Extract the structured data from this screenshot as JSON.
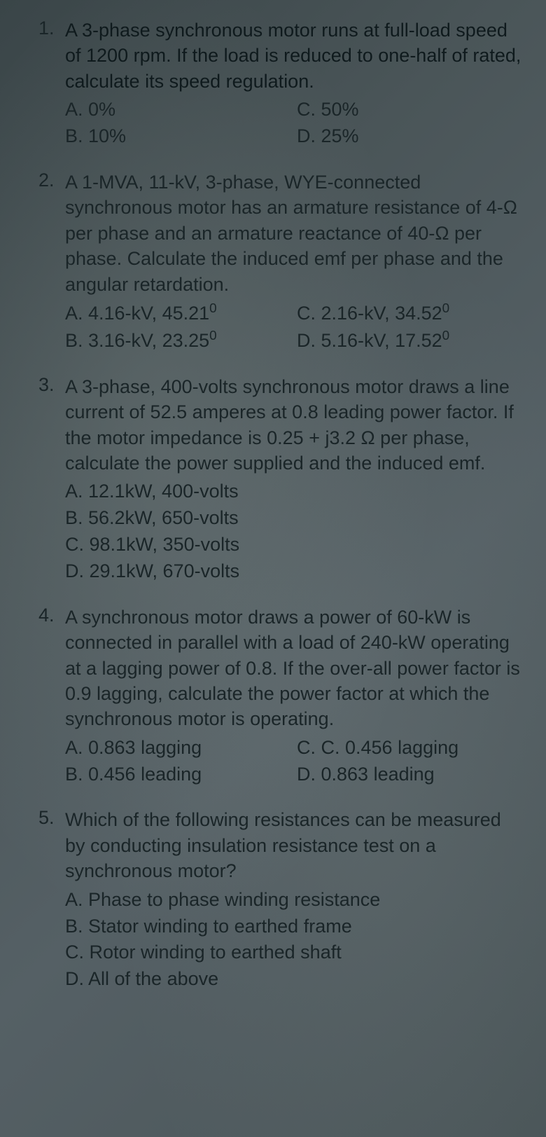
{
  "questions": [
    {
      "number": "1.",
      "text": "A 3-phase synchronous motor runs at full-load speed of 1200 rpm. If the load is reduced to one-half of rated, calculate its speed regulation.",
      "options_layout": "grid",
      "options": [
        {
          "label": "A. 0%"
        },
        {
          "label": "C. 50%"
        },
        {
          "label": "B. 10%"
        },
        {
          "label": "D. 25%"
        }
      ]
    },
    {
      "number": "2.",
      "text": "A 1-MVA, 11-kV, 3-phase, WYE-connected synchronous motor has an armature resistance of 4-Ω per phase and an armature reactance of   40-Ω per phase. Calculate the induced emf per phase and the angular retardation.",
      "options_layout": "grid",
      "options": [
        {
          "label": "A. 4.16-kV, 45.21",
          "sup": "0"
        },
        {
          "label": "C. 2.16-kV, 34.52",
          "sup": "0"
        },
        {
          "label": "B. 3.16-kV, 23.25",
          "sup": "0"
        },
        {
          "label": "D. 5.16-kV, 17.52",
          "sup": "0"
        }
      ]
    },
    {
      "number": "3.",
      "text": "A 3-phase, 400-volts synchronous motor draws a line current of 52.5 amperes at 0.8 leading power factor. If the motor impedance is 0.25 + j3.2 Ω per phase, calculate the power supplied and the induced emf.",
      "options_layout": "stack",
      "options": [
        {
          "label": "A. 12.1kW, 400-volts"
        },
        {
          "label": "B. 56.2kW, 650-volts"
        },
        {
          "label": "C. 98.1kW, 350-volts"
        },
        {
          "label": "D. 29.1kW, 670-volts"
        }
      ]
    },
    {
      "number": "4.",
      "text": "A synchronous motor draws a power of 60-kW is connected in parallel with a load of 240-kW operating at a lagging power of 0.8. If the over-all power factor is 0.9 lagging, calculate the power factor at which the synchronous motor is operating.",
      "options_layout": "grid",
      "options": [
        {
          "label": "A. 0.863 lagging"
        },
        {
          "label": "C. C. 0.456 lagging"
        },
        {
          "label": "B. 0.456 leading"
        },
        {
          "label": "D. 0.863 leading"
        }
      ]
    },
    {
      "number": "5.",
      "text": "Which of the following resistances can be measured by conducting insulation resistance test on a synchronous motor?",
      "options_layout": "stack",
      "options": [
        {
          "label": "A. Phase to phase winding resistance"
        },
        {
          "label": "B. Stator winding to earthed frame"
        },
        {
          "label": "C. Rotor winding to earthed shaft"
        },
        {
          "label": "D. All of the above"
        }
      ]
    }
  ]
}
